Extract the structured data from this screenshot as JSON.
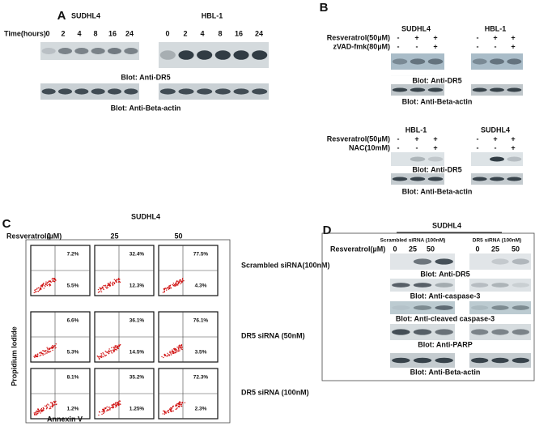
{
  "panel_a": {
    "label": "A",
    "cell_lines": [
      "SUDHL4",
      "HBL-1"
    ],
    "time_label": "Time(hours)",
    "times": [
      "0",
      "2",
      "4",
      "8",
      "16",
      "24"
    ],
    "blots": [
      "Blot: Anti-DR5",
      "Blot: Anti-Beta-actin"
    ]
  },
  "panel_b": {
    "label": "B",
    "top": {
      "cell_lines": [
        "SUDHL4",
        "HBL-1"
      ],
      "rows": [
        {
          "label": "Resveratrol(50µM)",
          "signs": [
            "-",
            "+",
            "+"
          ]
        },
        {
          "label": "zVAD-fmk(80µM)",
          "signs": [
            "-",
            "-",
            "+"
          ]
        }
      ],
      "blots": [
        "Blot: Anti-DR5",
        "Blot: Anti-Beta-actin"
      ]
    },
    "bottom": {
      "cell_lines": [
        "HBL-1",
        "SUDHL4"
      ],
      "rows": [
        {
          "label": "Resveratrol(50µM)",
          "signs": [
            "-",
            "+",
            "+"
          ]
        },
        {
          "label": "NAC(10mM)",
          "signs": [
            "-",
            "-",
            "+"
          ]
        }
      ],
      "blots": [
        "Blot: Anti-DR5",
        "Blot: Anti-Beta-actin"
      ]
    }
  },
  "panel_c": {
    "label": "C",
    "title": "SUDHL4",
    "treatment": "Resveratrol(µM)",
    "doses": [
      "0",
      "25",
      "50"
    ],
    "rows": [
      {
        "label": "Scrambled siRNA(100nM)",
        "plots": [
          {
            "upper": "7.2%",
            "lower": "5.5%"
          },
          {
            "upper": "32.4%",
            "lower": "12.3%"
          },
          {
            "upper": "77.5%",
            "lower": "4.3%"
          }
        ]
      },
      {
        "label": "DR5 siRNA (50nM)",
        "plots": [
          {
            "upper": "6.6%",
            "lower": "5.3%"
          },
          {
            "upper": "36.1%",
            "lower": "14.5%"
          },
          {
            "upper": "76.1%",
            "lower": "3.5%"
          }
        ]
      },
      {
        "label": "DR5 siRNA (100nM)",
        "plots": [
          {
            "upper": "8.1%",
            "lower": "1.2%"
          },
          {
            "upper": "35.2%",
            "lower": "1.25%"
          },
          {
            "upper": "72.3%",
            "lower": "2.3%"
          }
        ]
      }
    ],
    "y_axis": "Propidium Iodide",
    "x_axis": "Annexin V"
  },
  "panel_d": {
    "label": "D",
    "title": "SUDHL4",
    "groups": [
      "Scrambled siRNA (100nM)",
      "DR5 siRNA (100nM)"
    ],
    "treatment": "Resveratrol(µM)",
    "doses": [
      "0",
      "25",
      "50"
    ],
    "blots": [
      "Blot: Anti-DR5",
      "Blot: Anti-caspase-3",
      "Blot: Anti-cleaved caspase-3",
      "Blot: Anti-PARP",
      "Blot: Anti-Beta-actin"
    ]
  }
}
